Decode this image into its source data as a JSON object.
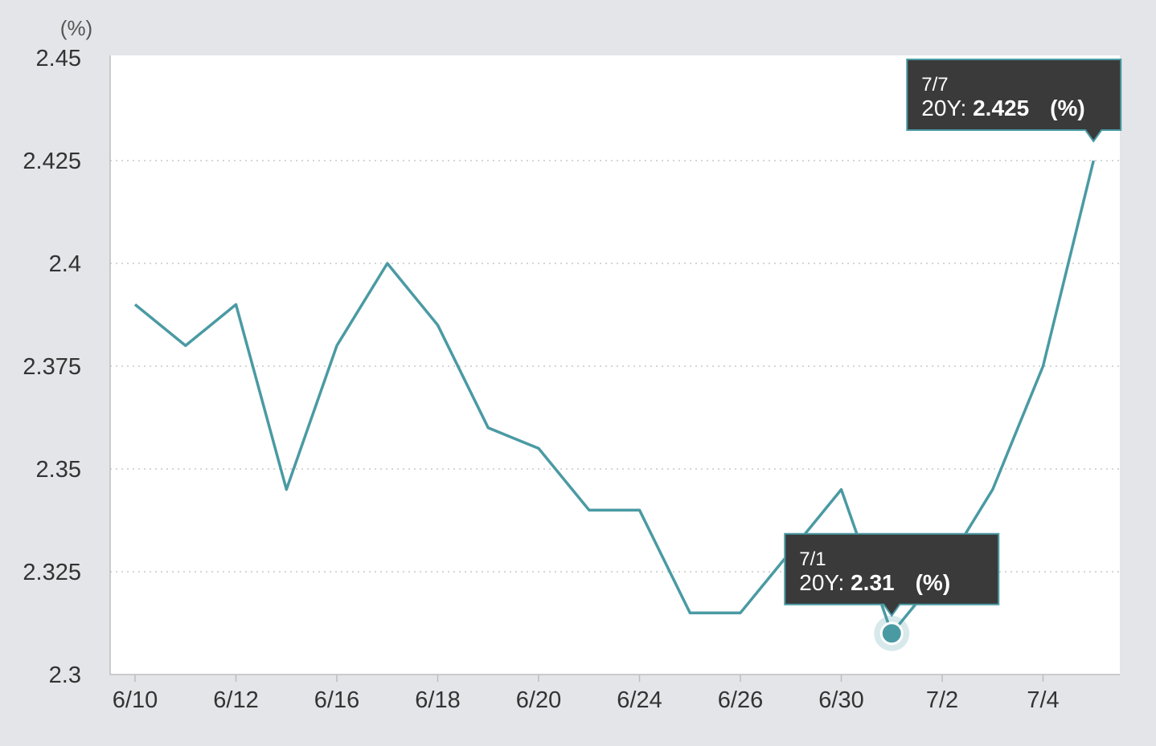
{
  "chart_data": {
    "type": "line",
    "unit_label": "(%)",
    "x_tick_labels": [
      "6/10",
      "6/12",
      "6/16",
      "6/18",
      "6/20",
      "6/24",
      "6/26",
      "6/30",
      "7/2",
      "7/4"
    ],
    "y_tick_labels": [
      "2.45",
      "2.425",
      "2.4",
      "2.375",
      "2.35",
      "2.325",
      "2.3"
    ],
    "ylim": [
      2.3,
      2.45
    ],
    "grid": true,
    "series": [
      {
        "color": "#4a9aa3",
        "points": [
          {
            "x": "6/10",
            "y": 2.39
          },
          {
            "x": "6/11",
            "y": 2.38
          },
          {
            "x": "6/12",
            "y": 2.39
          },
          {
            "x": "6/13",
            "y": 2.345
          },
          {
            "x": "6/16",
            "y": 2.38
          },
          {
            "x": "6/17",
            "y": 2.4
          },
          {
            "x": "6/18",
            "y": 2.385
          },
          {
            "x": "6/19",
            "y": 2.36
          },
          {
            "x": "6/20",
            "y": 2.355
          },
          {
            "x": "6/23",
            "y": 2.34
          },
          {
            "x": "6/24",
            "y": 2.34
          },
          {
            "x": "6/25",
            "y": 2.315
          },
          {
            "x": "6/26",
            "y": 2.315
          },
          {
            "x": "6/27",
            "y": 2.33
          },
          {
            "x": "6/30",
            "y": 2.345
          },
          {
            "x": "7/1",
            "y": 2.31
          },
          {
            "x": "7/2",
            "y": 2.325
          },
          {
            "x": "7/3",
            "y": 2.345
          },
          {
            "x": "7/4",
            "y": 2.375
          },
          {
            "x": "7/7",
            "y": 2.425
          }
        ]
      }
    ],
    "tooltips": [
      {
        "date": "7/1",
        "series_label": "20Y:",
        "value": "2.31",
        "unit": "(%)"
      },
      {
        "date": "7/7",
        "series_label": "20Y:",
        "value": "2.425",
        "unit": "(%)"
      }
    ],
    "highlight_point": "7/1"
  }
}
